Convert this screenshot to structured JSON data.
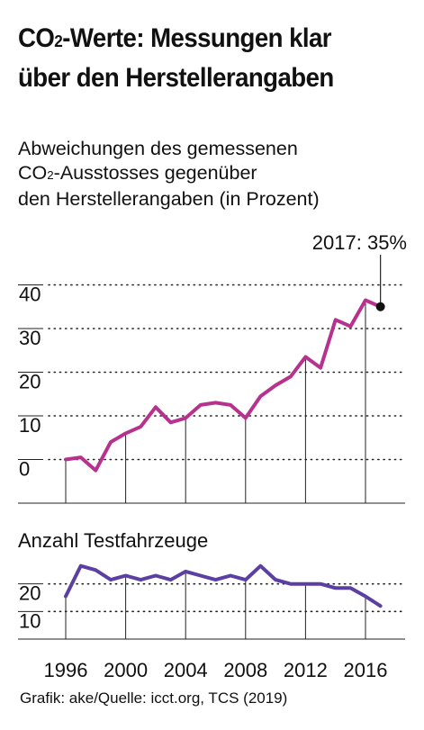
{
  "title_lines": [
    "CO₂-Werte: Messungen klar",
    "über den Herstellerangaben"
  ],
  "subtitle_lines": [
    "Abweichungen des gemessenen",
    "CO₂-Ausstosses gegenüber",
    "den Herstellerangaben (in Prozent)"
  ],
  "footer": "Grafik: ake/Quelle: icct.org, TCS (2019)",
  "colors": {
    "deviation_line": "#b7318f",
    "testcars_line": "#5b3fa3",
    "text": "#111111",
    "grid": "#222222",
    "marker": "#111111"
  },
  "chart_data": [
    {
      "type": "line",
      "title": "Abweichungen des gemessenen CO₂-Ausstosses gegenüber den Herstellerangaben (in Prozent)",
      "x": [
        1996,
        1997,
        1998,
        1999,
        2000,
        2001,
        2002,
        2003,
        2004,
        2005,
        2006,
        2007,
        2008,
        2009,
        2010,
        2011,
        2012,
        2013,
        2014,
        2015,
        2016,
        2017
      ],
      "series": [
        {
          "values": [
            0,
            0.5,
            -2.5,
            4,
            6,
            7.5,
            12,
            8.5,
            9.5,
            12.5,
            13,
            12.5,
            9.5,
            14.5,
            17,
            19,
            23.5,
            21,
            32,
            30.5,
            36.5,
            35
          ]
        }
      ],
      "xticks": [
        1996,
        2000,
        2004,
        2008,
        2012,
        2016
      ],
      "yticks": [
        0,
        10,
        20,
        30,
        40
      ],
      "ylim": [
        -10,
        50
      ],
      "annotation": {
        "label": "2017: 35%",
        "x": 2017,
        "y": 35
      }
    },
    {
      "type": "line",
      "title": "Anzahl Testfahrzeuge",
      "x": [
        1996,
        1997,
        1998,
        1999,
        2000,
        2001,
        2002,
        2003,
        2004,
        2005,
        2006,
        2007,
        2008,
        2009,
        2010,
        2011,
        2012,
        2013,
        2014,
        2015,
        2016,
        2017
      ],
      "series": [
        {
          "values": [
            15.5,
            26.5,
            25,
            21.5,
            23,
            21.5,
            23,
            21.5,
            24.5,
            23,
            21.5,
            23,
            21.5,
            26.5,
            21.5,
            20,
            20,
            20,
            18.5,
            18.5,
            15.5,
            12
          ]
        }
      ],
      "xticks": [
        1996,
        2000,
        2004,
        2008,
        2012,
        2016
      ],
      "yticks": [
        10,
        20
      ],
      "ylim": [
        0,
        30
      ]
    }
  ]
}
